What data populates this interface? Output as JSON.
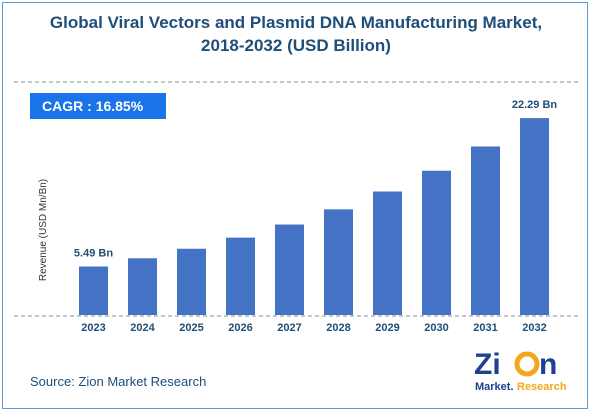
{
  "title_line1": "Global Viral Vectors and Plasmid DNA Manufacturing Market,",
  "title_line2": "2018-2032 (USD Billion)",
  "cagr_label": "CAGR : 16.85%",
  "source": "Source: Zion Market Research",
  "logo": {
    "word1": "Zion",
    "word2": "Market.Research",
    "icon": "zion-logo-icon"
  },
  "colors": {
    "bar": "#4472c4",
    "title": "#1f4e79",
    "cagr_bg": "#1a73e8",
    "border": "#5b9bd5"
  },
  "chart_data": {
    "type": "bar",
    "categories": [
      "2023",
      "2024",
      "2025",
      "2026",
      "2027",
      "2028",
      "2029",
      "2030",
      "2031",
      "2032"
    ],
    "values": [
      5.49,
      6.42,
      7.5,
      8.76,
      10.24,
      11.96,
      13.98,
      16.33,
      19.08,
      22.29
    ],
    "ylabel": "Revenue (USD Mn/Bn)",
    "ylim": [
      0,
      24
    ],
    "grid": false,
    "data_labels": [
      {
        "index": 0,
        "text": "5.49 Bn"
      },
      {
        "index": 9,
        "text": "22.29 Bn"
      }
    ]
  }
}
